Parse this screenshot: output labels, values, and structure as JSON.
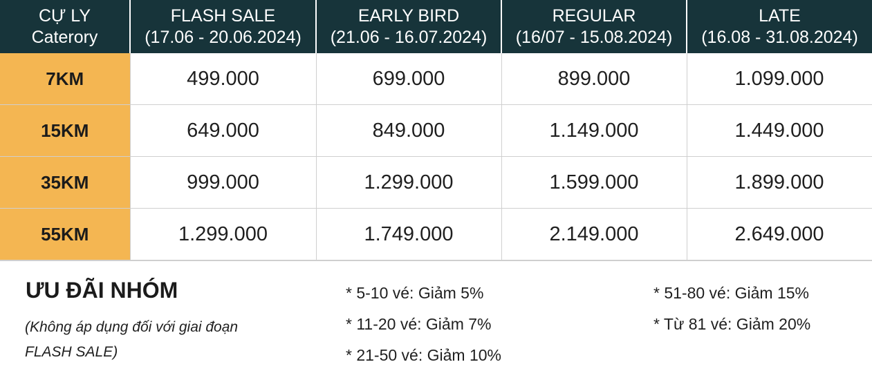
{
  "header": {
    "category": [
      "CỰ LY",
      "Caterory"
    ],
    "phases": [
      {
        "name": "FLASH SALE",
        "dates": "(17.06 - 20.06.2024)"
      },
      {
        "name": "EARLY BIRD",
        "dates": "(21.06 - 16.07.2024)"
      },
      {
        "name": "REGULAR",
        "dates": "(16/07 - 15.08.2024)"
      },
      {
        "name": "LATE",
        "dates": "(16.08 - 31.08.2024)"
      }
    ]
  },
  "rows": [
    {
      "distance": "7KM",
      "prices": [
        "499.000",
        "699.000",
        "899.000",
        "1.099.000"
      ]
    },
    {
      "distance": "15KM",
      "prices": [
        "649.000",
        "849.000",
        "1.149.000",
        "1.449.000"
      ]
    },
    {
      "distance": "35KM",
      "prices": [
        "999.000",
        "1.299.000",
        "1.599.000",
        "1.899.000"
      ]
    },
    {
      "distance": "55KM",
      "prices": [
        "1.299.000",
        "1.749.000",
        "2.149.000",
        "2.649.000"
      ]
    }
  ],
  "group_offer": {
    "title": "ƯU ĐÃI NHÓM",
    "note": "(Không áp dụng đối với giai đoạn FLASH SALE)",
    "discounts_left": [
      "* 5-10 vé: Giảm 5%",
      "* 11-20 vé: Giảm 7%",
      "* 21-50 vé: Giảm 10%"
    ],
    "discounts_right": [
      "* 51-80 vé: Giảm 15%",
      "* Từ 81 vé: Giảm 20%"
    ]
  },
  "colors": {
    "header_bg": "#17343a",
    "category_bg": "#f4b652",
    "border": "#cfcfcf"
  }
}
